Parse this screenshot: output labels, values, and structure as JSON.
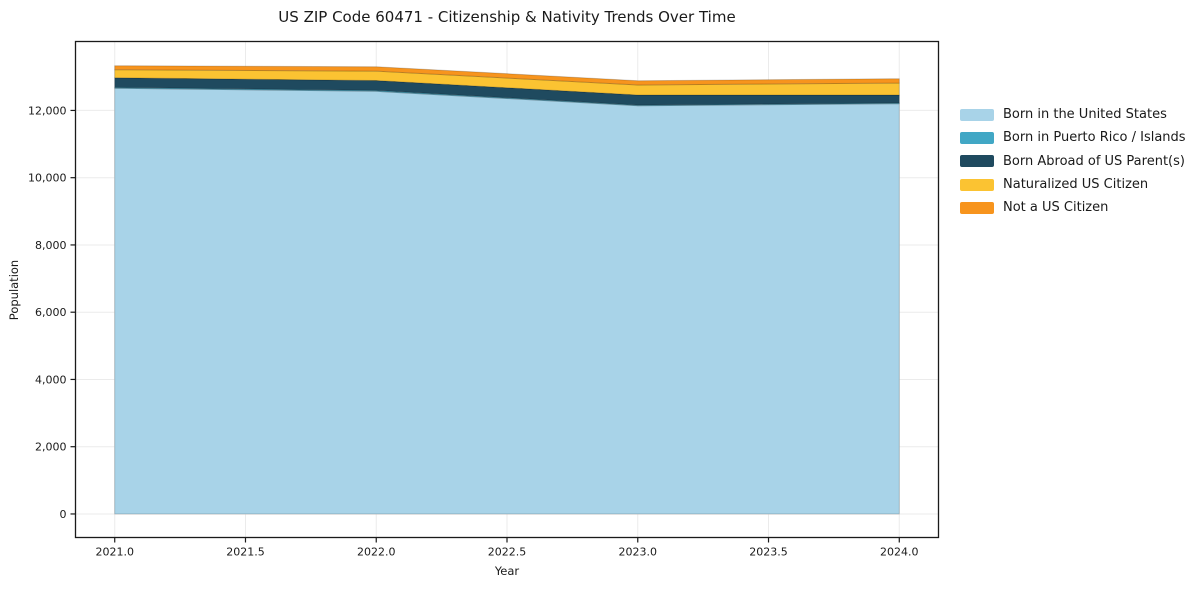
{
  "title": "US ZIP Code 60471 - Citizenship & Nativity Trends Over Time",
  "chart_data": {
    "type": "area",
    "stacked": true,
    "title": "US ZIP Code 60471 - Citizenship & Nativity Trends Over Time",
    "xlabel": "Year",
    "ylabel": "Population",
    "x": [
      2021,
      2022,
      2023,
      2024
    ],
    "series": [
      {
        "name": "Born in the United States",
        "color": "#a8d3e8",
        "values": [
          12660,
          12570,
          12140,
          12200
        ]
      },
      {
        "name": "Born in Puerto Rico / Islands",
        "color": "#41a7c5",
        "values": [
          25,
          25,
          20,
          20
        ]
      },
      {
        "name": "Born Abroad of US Parent(s)",
        "color": "#1f4a5f",
        "values": [
          285,
          295,
          300,
          240
        ]
      },
      {
        "name": "Naturalized US Citizen",
        "color": "#fbc332",
        "values": [
          240,
          280,
          295,
          355
        ]
      },
      {
        "name": "Not a US Citizen",
        "color": "#f7941d",
        "values": [
          120,
          130,
          130,
          130
        ]
      }
    ],
    "totals": [
      13330,
      13300,
      12885,
      12945
    ],
    "xticks": [
      2021.0,
      2021.5,
      2022.0,
      2022.5,
      2023.0,
      2023.5,
      2024.0
    ],
    "xtick_labels": [
      "2021.0",
      "2021.5",
      "2022.0",
      "2022.5",
      "2023.0",
      "2023.5",
      "2024.0"
    ],
    "yticks": [
      0,
      2000,
      4000,
      6000,
      8000,
      10000,
      12000
    ],
    "ytick_labels": [
      "0",
      "2,000",
      "4,000",
      "6,000",
      "8,000",
      "10,000",
      "12,000"
    ],
    "xlim": [
      2020.85,
      2024.15
    ],
    "ylim": [
      -700,
      14050
    ],
    "grid": true,
    "legend_position": "outside-right",
    "colors": {
      "text": "#1a1a1a",
      "spine": "#1a1a1a",
      "grid": "#ebebeb",
      "background": "#ffffff"
    }
  }
}
